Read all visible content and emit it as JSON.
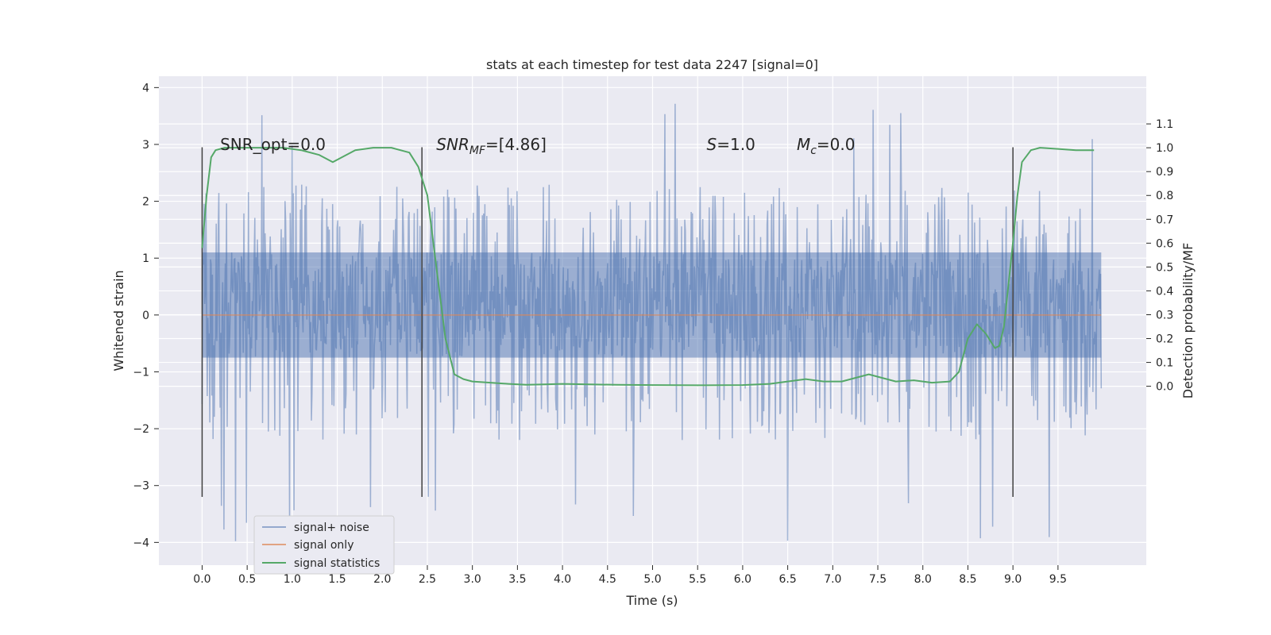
{
  "chart_data": {
    "type": "line",
    "title": "stats at each timestep for test data 2247 [signal=0]",
    "xlabel": "Time (s)",
    "ylabel": "Whitened strain",
    "ylabel_right": "Detection probability/MF",
    "xlim": [
      -0.48,
      10.48
    ],
    "ylim": [
      -4.4,
      4.2
    ],
    "ylim_right": [
      -0.75,
      1.3
    ],
    "x_ticks": [
      0.0,
      0.5,
      1.0,
      1.5,
      2.0,
      2.5,
      3.0,
      3.5,
      4.0,
      4.5,
      5.0,
      5.5,
      6.0,
      6.5,
      7.0,
      7.5,
      8.0,
      8.5,
      9.0,
      9.5
    ],
    "x_tick_labels": [
      "0.0",
      "0.5",
      "1.0",
      "1.5",
      "2.0",
      "2.5",
      "3.0",
      "3.5",
      "4.0",
      "4.5",
      "5.0",
      "5.5",
      "6.0",
      "6.5",
      "7.0",
      "7.5",
      "8.0",
      "8.5",
      "9.0",
      "9.5"
    ],
    "y_ticks": [
      4,
      3,
      2,
      1,
      0,
      -1,
      -2,
      -3,
      -4
    ],
    "y_tick_labels": [
      "4",
      "3",
      "2",
      "1",
      "0",
      "−1",
      "−2",
      "−3",
      "−4"
    ],
    "y_right_ticks": [
      1.1,
      1.0,
      0.9,
      0.8,
      0.7,
      0.6,
      0.5,
      0.4,
      0.3,
      0.2,
      0.1,
      0.0
    ],
    "y_right_tick_labels": [
      "1.1",
      "1.0",
      "0.9",
      "0.8",
      "0.7",
      "0.6",
      "0.5",
      "0.4",
      "0.3",
      "0.2",
      "0.1",
      "0.0"
    ],
    "grid": true,
    "legend_position": "lower-left",
    "annotations": [
      {
        "text": "SNR_opt=0.0",
        "x": 0.2,
        "y": 3.0
      },
      {
        "text": "SNR_MF=[4.86]",
        "x": 2.6,
        "y": 3.0,
        "math": true
      },
      {
        "text": "S=1.0",
        "x": 5.6,
        "y": 3.0,
        "math": true
      },
      {
        "text": "M_c=0.0",
        "x": 6.6,
        "y": 3.0,
        "math": true
      }
    ],
    "vertical_lines": [
      0.0,
      2.44,
      9.0
    ],
    "vertical_lines_range": [
      -3.2,
      2.95
    ],
    "series": [
      {
        "name": "signal+ noise",
        "color": "#4c72b0",
        "opacity": 0.5,
        "kind": "noise",
        "x_range": [
          0.0,
          9.98
        ],
        "dense_band": [
          -0.75,
          1.1
        ],
        "typical_range": [
          -2.2,
          2.3
        ],
        "extremes": [
          -4.05,
          3.82
        ]
      },
      {
        "name": "signal only",
        "color": "#dd8452",
        "x": [
          0.0,
          9.98
        ],
        "y": [
          0.0,
          0.0
        ]
      },
      {
        "name": "signal statistics",
        "color": "#55a868",
        "axis": "right",
        "x": [
          0.0,
          0.05,
          0.1,
          0.15,
          0.25,
          0.5,
          0.9,
          1.1,
          1.3,
          1.45,
          1.55,
          1.7,
          1.9,
          2.1,
          2.3,
          2.4,
          2.5,
          2.6,
          2.7,
          2.8,
          2.9,
          3.0,
          3.2,
          3.4,
          3.6,
          3.8,
          4.0,
          4.3,
          4.6,
          5.0,
          5.5,
          6.0,
          6.3,
          6.5,
          6.7,
          6.9,
          7.1,
          7.3,
          7.4,
          7.5,
          7.7,
          7.9,
          8.1,
          8.3,
          8.4,
          8.5,
          8.6,
          8.7,
          8.8,
          8.85,
          8.9,
          9.0,
          9.05,
          9.1,
          9.2,
          9.3,
          9.5,
          9.7,
          9.9
        ],
        "y": [
          0.58,
          0.8,
          0.96,
          0.99,
          1.0,
          1.0,
          1.0,
          0.99,
          0.97,
          0.94,
          0.96,
          0.99,
          1.0,
          1.0,
          0.98,
          0.92,
          0.8,
          0.5,
          0.2,
          0.05,
          0.03,
          0.02,
          0.015,
          0.01,
          0.006,
          0.008,
          0.01,
          0.008,
          0.006,
          0.005,
          0.004,
          0.005,
          0.01,
          0.02,
          0.03,
          0.02,
          0.02,
          0.04,
          0.05,
          0.04,
          0.02,
          0.025,
          0.015,
          0.02,
          0.06,
          0.2,
          0.26,
          0.22,
          0.16,
          0.17,
          0.25,
          0.6,
          0.8,
          0.94,
          0.99,
          1.0,
          0.995,
          0.99,
          0.99
        ]
      }
    ]
  }
}
